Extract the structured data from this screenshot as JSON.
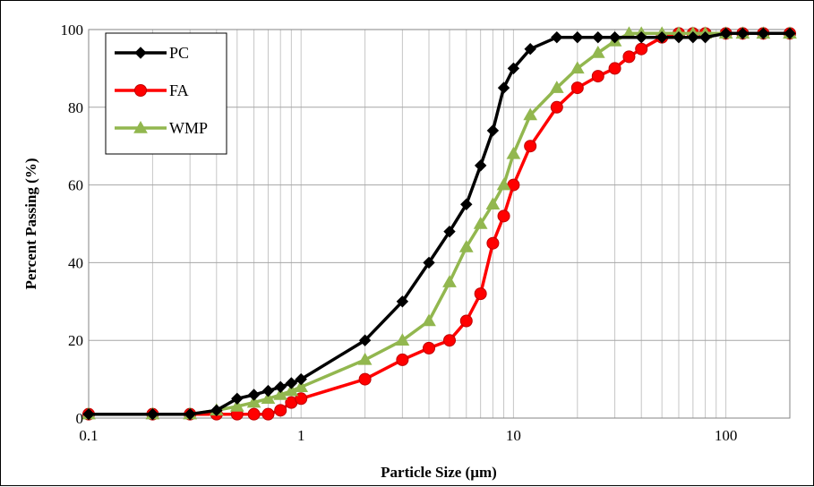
{
  "chart_data": {
    "type": "line",
    "xscale": "log",
    "xlim": [
      0.1,
      200
    ],
    "ylim": [
      0,
      100
    ],
    "xlabel": "Particle Size (µm)",
    "ylabel": "Percent Passing (%)",
    "xticks": [
      0.1,
      1,
      10,
      100
    ],
    "xtick_labels": [
      "0.1",
      "1",
      "10",
      "100"
    ],
    "yticks": [
      0,
      20,
      40,
      60,
      80,
      100
    ],
    "ytick_labels": [
      "0",
      "20",
      "40",
      "60",
      "80",
      "100"
    ],
    "grid": "vertical minor and major lines, horizontal major lines",
    "legend_position": "top-left",
    "series": [
      {
        "name": "PC",
        "color": "#000000",
        "marker": "diamond",
        "x": [
          0.1,
          0.2,
          0.3,
          0.4,
          0.5,
          0.6,
          0.7,
          0.8,
          0.9,
          1,
          2,
          3,
          4,
          5,
          6,
          7,
          8,
          9,
          10,
          12,
          16,
          20,
          25,
          30,
          40,
          50,
          60,
          70,
          80,
          100,
          120,
          150,
          200
        ],
        "y": [
          1,
          1,
          1,
          2,
          5,
          6,
          7,
          8,
          9,
          10,
          20,
          30,
          40,
          48,
          55,
          65,
          74,
          85,
          90,
          95,
          98,
          98,
          98,
          98,
          98,
          98,
          98,
          98,
          98,
          99,
          99,
          99,
          99
        ]
      },
      {
        "name": "FA",
        "color": "#ff0000",
        "marker": "circle",
        "x": [
          0.1,
          0.2,
          0.3,
          0.4,
          0.5,
          0.6,
          0.7,
          0.8,
          0.9,
          1,
          2,
          3,
          4,
          5,
          6,
          7,
          8,
          9,
          10,
          12,
          16,
          20,
          25,
          30,
          35,
          40,
          50,
          60,
          70,
          80,
          100,
          120,
          150,
          200
        ],
        "y": [
          1,
          1,
          1,
          1,
          1,
          1,
          1,
          2,
          4,
          5,
          10,
          15,
          18,
          20,
          25,
          32,
          45,
          52,
          60,
          70,
          80,
          85,
          88,
          90,
          93,
          95,
          98,
          99,
          99,
          99,
          99,
          99,
          99,
          99
        ]
      },
      {
        "name": "WMP",
        "color": "#92b74f",
        "marker": "triangle",
        "x": [
          0.1,
          0.2,
          0.3,
          0.4,
          0.5,
          0.6,
          0.7,
          0.8,
          0.9,
          1,
          2,
          3,
          4,
          5,
          6,
          7,
          8,
          9,
          10,
          12,
          16,
          20,
          25,
          30,
          35,
          40,
          50,
          60,
          70,
          80,
          100,
          120,
          150,
          200
        ],
        "y": [
          1,
          1,
          1,
          2,
          3,
          4,
          5,
          6,
          7,
          8,
          15,
          20,
          25,
          35,
          44,
          50,
          55,
          60,
          68,
          78,
          85,
          90,
          94,
          97,
          99,
          99,
          99,
          99,
          99,
          99,
          99,
          99,
          99,
          99
        ]
      }
    ]
  }
}
